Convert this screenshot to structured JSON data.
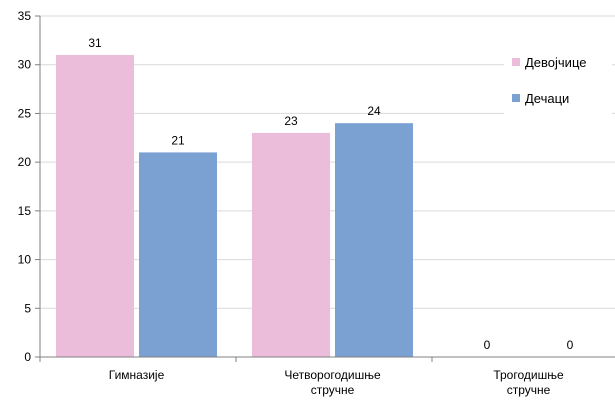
{
  "chart_data": {
    "type": "bar",
    "categories": [
      "Гимназије",
      "Четворогодишње\nстручне",
      "Трогодишње\nстручне"
    ],
    "series": [
      {
        "name": "Девојчице",
        "values": [
          31,
          23,
          0
        ],
        "color": "#EBBDDB"
      },
      {
        "name": "Дечаци",
        "values": [
          21,
          24,
          0
        ],
        "color": "#7BA0D2"
      }
    ],
    "ylim": [
      0,
      35
    ],
    "yticks": [
      0,
      5,
      10,
      15,
      20,
      25,
      30,
      35
    ],
    "grid": true,
    "legend": "right",
    "data_labels": true,
    "title": "",
    "xlabel": "",
    "ylabel": ""
  }
}
